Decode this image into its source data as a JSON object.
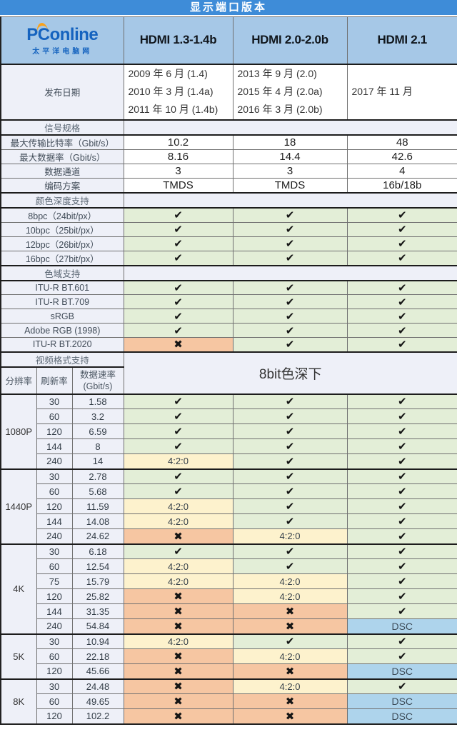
{
  "title": "显示端口版本",
  "logo": {
    "p": "P",
    "c": "C",
    "rest": "online",
    "sub": "太平洋电脑网"
  },
  "colors": {
    "title_bg": "#3e8cd8",
    "header_bg": "#a6c8e7",
    "label_bg": "#eef0f8",
    "ok_bg": "#e3eed7",
    "no_bg": "#f6c6a2",
    "sub_bg": "#fdf2cd",
    "dsc_bg": "#aed4ec",
    "logo_blue": "#1563bf",
    "logo_orange": "#f9a11b"
  },
  "chart_data": {
    "type": "table",
    "title": "显示端口版本",
    "columns": [
      "HDMI 1.3-1.4b",
      "HDMI 2.0-2.0b",
      "HDMI 2.1"
    ],
    "release_row": {
      "label": "发布日期",
      "cells": [
        [
          "2009 年 6 月 (1.4)",
          "2010 年 3 月 (1.4a)",
          "2011 年 10 月 (1.4b)"
        ],
        [
          "2013 年 9 月 (2.0)",
          "2015 年 4 月 (2.0a)",
          "2016 年 3 月 (2.0b)"
        ],
        [
          "2017 年 11 月"
        ]
      ]
    },
    "marks": {
      "check": {
        "glyph": "✔",
        "cls": "ok",
        "icon": "check-icon"
      },
      "x": {
        "glyph": "✖",
        "cls": "no",
        "icon": "cross-icon"
      },
      "420": {
        "glyph": "4:2:0",
        "cls": "sub",
        "icon": "chroma-420-label"
      },
      "dsc": {
        "glyph": "DSC",
        "cls": "dsc",
        "icon": "dsc-label"
      }
    },
    "sections": [
      {
        "header": "信号规格",
        "rows": [
          {
            "label": "最大传输比特率（Gbit/s）",
            "values": [
              "10.2",
              "18",
              "48"
            ]
          },
          {
            "label": "最大数据率（Gbit/s）",
            "values": [
              "8.16",
              "14.4",
              "42.6"
            ]
          },
          {
            "label": "数据通道",
            "values": [
              "3",
              "3",
              "4"
            ]
          },
          {
            "label": "编码方案",
            "values": [
              "TMDS",
              "TMDS",
              "16b/18b"
            ]
          }
        ]
      },
      {
        "header": "颜色深度支持",
        "rows": [
          {
            "label": "8bpc（24bit/px）",
            "marks": [
              "check",
              "check",
              "check"
            ]
          },
          {
            "label": "10bpc（25bit/px）",
            "marks": [
              "check",
              "check",
              "check"
            ]
          },
          {
            "label": "12bpc（26bit/px）",
            "marks": [
              "check",
              "check",
              "check"
            ]
          },
          {
            "label": "16bpc（27bit/px）",
            "marks": [
              "check",
              "check",
              "check"
            ]
          }
        ]
      },
      {
        "header": "色域支持",
        "rows": [
          {
            "label": "ITU-R BT.601",
            "marks": [
              "check",
              "check",
              "check"
            ]
          },
          {
            "label": "ITU-R BT.709",
            "marks": [
              "check",
              "check",
              "check"
            ]
          },
          {
            "label": "sRGB",
            "marks": [
              "check",
              "check",
              "check"
            ]
          },
          {
            "label": "Adobe RGB (1998)",
            "marks": [
              "check",
              "check",
              "check"
            ]
          },
          {
            "label": "ITU-R BT.2020",
            "marks": [
              "x",
              "check",
              "check"
            ]
          }
        ]
      }
    ],
    "video": {
      "header": "视频格式支持",
      "sub_columns": [
        "分辨率",
        "刷新率",
        "数据速率",
        "(Gbit/s)"
      ],
      "span_note": "8bit色深下",
      "groups": [
        {
          "resolution": "1080P",
          "rows": [
            {
              "refresh": "30",
              "rate": "1.58",
              "marks": [
                "check",
                "check",
                "check"
              ]
            },
            {
              "refresh": "60",
              "rate": "3.2",
              "marks": [
                "check",
                "check",
                "check"
              ]
            },
            {
              "refresh": "120",
              "rate": "6.59",
              "marks": [
                "check",
                "check",
                "check"
              ]
            },
            {
              "refresh": "144",
              "rate": "8",
              "marks": [
                "check",
                "check",
                "check"
              ]
            },
            {
              "refresh": "240",
              "rate": "14",
              "marks": [
                "420",
                "check",
                "check"
              ]
            }
          ]
        },
        {
          "resolution": "1440P",
          "rows": [
            {
              "refresh": "30",
              "rate": "2.78",
              "marks": [
                "check",
                "check",
                "check"
              ]
            },
            {
              "refresh": "60",
              "rate": "5.68",
              "marks": [
                "check",
                "check",
                "check"
              ]
            },
            {
              "refresh": "120",
              "rate": "11.59",
              "marks": [
                "420",
                "check",
                "check"
              ]
            },
            {
              "refresh": "144",
              "rate": "14.08",
              "marks": [
                "420",
                "check",
                "check"
              ]
            },
            {
              "refresh": "240",
              "rate": "24.62",
              "marks": [
                "x",
                "420",
                "check"
              ]
            }
          ]
        },
        {
          "resolution": "4K",
          "rows": [
            {
              "refresh": "30",
              "rate": "6.18",
              "marks": [
                "check",
                "check",
                "check"
              ]
            },
            {
              "refresh": "60",
              "rate": "12.54",
              "marks": [
                "420",
                "check",
                "check"
              ]
            },
            {
              "refresh": "75",
              "rate": "15.79",
              "marks": [
                "420",
                "420",
                "check"
              ]
            },
            {
              "refresh": "120",
              "rate": "25.82",
              "marks": [
                "x",
                "420",
                "check"
              ]
            },
            {
              "refresh": "144",
              "rate": "31.35",
              "marks": [
                "x",
                "x",
                "check"
              ]
            },
            {
              "refresh": "240",
              "rate": "54.84",
              "marks": [
                "x",
                "x",
                "dsc"
              ]
            }
          ]
        },
        {
          "resolution": "5K",
          "rows": [
            {
              "refresh": "30",
              "rate": "10.94",
              "marks": [
                "420",
                "check",
                "check"
              ]
            },
            {
              "refresh": "60",
              "rate": "22.18",
              "marks": [
                "x",
                "420",
                "check"
              ]
            },
            {
              "refresh": "120",
              "rate": "45.66",
              "marks": [
                "x",
                "x",
                "dsc"
              ]
            }
          ]
        },
        {
          "resolution": "8K",
          "rows": [
            {
              "refresh": "30",
              "rate": "24.48",
              "marks": [
                "x",
                "420",
                "check"
              ]
            },
            {
              "refresh": "60",
              "rate": "49.65",
              "marks": [
                "x",
                "x",
                "dsc"
              ]
            },
            {
              "refresh": "120",
              "rate": "102.2",
              "marks": [
                "x",
                "x",
                "dsc"
              ]
            }
          ]
        }
      ]
    }
  }
}
